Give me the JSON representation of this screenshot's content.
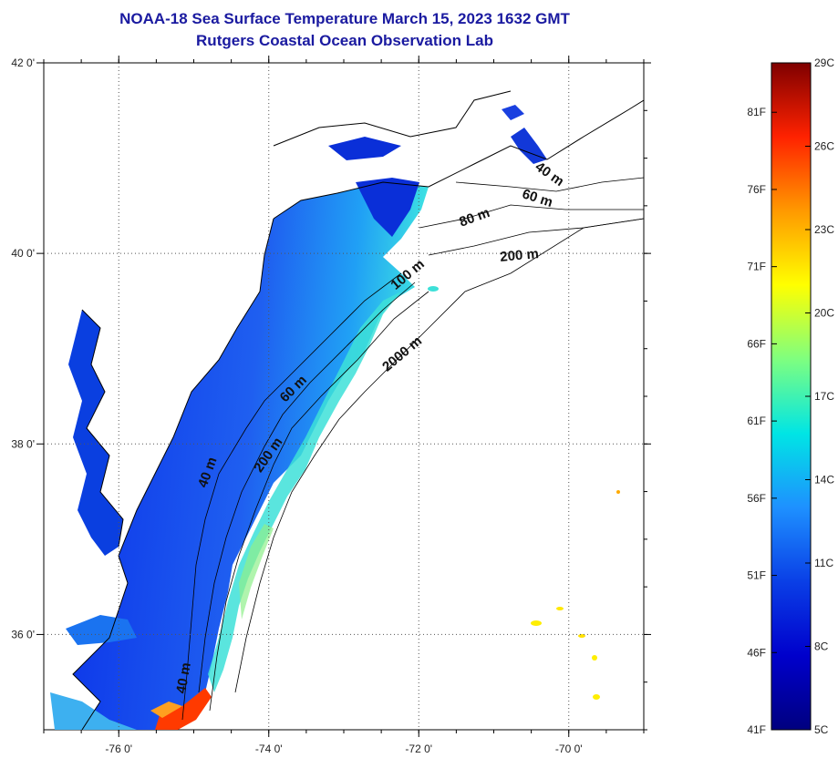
{
  "title": "NOAA-18 Sea Surface Temperature March 15, 2023 1632 GMT",
  "subtitle": "Rutgers Coastal Ocean Observation Lab",
  "chart_data": {
    "type": "heatmap",
    "title": "NOAA-18 Sea Surface Temperature March 15, 2023 1632 GMT",
    "subtitle": "Rutgers Coastal Ocean Observation Lab",
    "x_ticks": [
      {
        "value": -76,
        "label": "-76 0'"
      },
      {
        "value": -74,
        "label": "-74 0'"
      },
      {
        "value": -72,
        "label": "-72 0'"
      },
      {
        "value": -70,
        "label": "-70 0'"
      }
    ],
    "y_ticks": [
      {
        "value": 42,
        "label": "42 0'"
      },
      {
        "value": 40,
        "label": "40 0'"
      },
      {
        "value": 38,
        "label": "38 0'"
      },
      {
        "value": 36,
        "label": "36 0'"
      }
    ],
    "xlim": [
      -77,
      -69
    ],
    "ylim": [
      35,
      42
    ],
    "grid": true,
    "contour_labels": [
      "40 m",
      "60 m",
      "80 m",
      "200 m",
      "100 m",
      "2000 m",
      "60 m",
      "200 m",
      "40 m",
      "40 m"
    ],
    "colorbar": {
      "range_c": [
        5,
        29
      ],
      "celsius_ticks": [
        {
          "value": 29,
          "label": "29C"
        },
        {
          "value": 26,
          "label": "26C"
        },
        {
          "value": 23,
          "label": "23C"
        },
        {
          "value": 20,
          "label": "20C"
        },
        {
          "value": 17,
          "label": "17C"
        },
        {
          "value": 14,
          "label": "14C"
        },
        {
          "value": 11,
          "label": "11C"
        },
        {
          "value": 8,
          "label": "8C"
        },
        {
          "value": 5,
          "label": "5C"
        }
      ],
      "fahrenheit_ticks": [
        {
          "value": 81,
          "label": "81F"
        },
        {
          "value": 76,
          "label": "76F"
        },
        {
          "value": 71,
          "label": "71F"
        },
        {
          "value": 66,
          "label": "66F"
        },
        {
          "value": 61,
          "label": "61F"
        },
        {
          "value": 56,
          "label": "56F"
        },
        {
          "value": 51,
          "label": "51F"
        },
        {
          "value": 46,
          "label": "46F"
        },
        {
          "value": 41,
          "label": "41F"
        }
      ],
      "colors": [
        "#00007f",
        "#0000cc",
        "#0a3fe6",
        "#1e90ff",
        "#00e5e5",
        "#7fff7f",
        "#ffff00",
        "#ff9900",
        "#ff2200",
        "#7f0000"
      ]
    }
  }
}
